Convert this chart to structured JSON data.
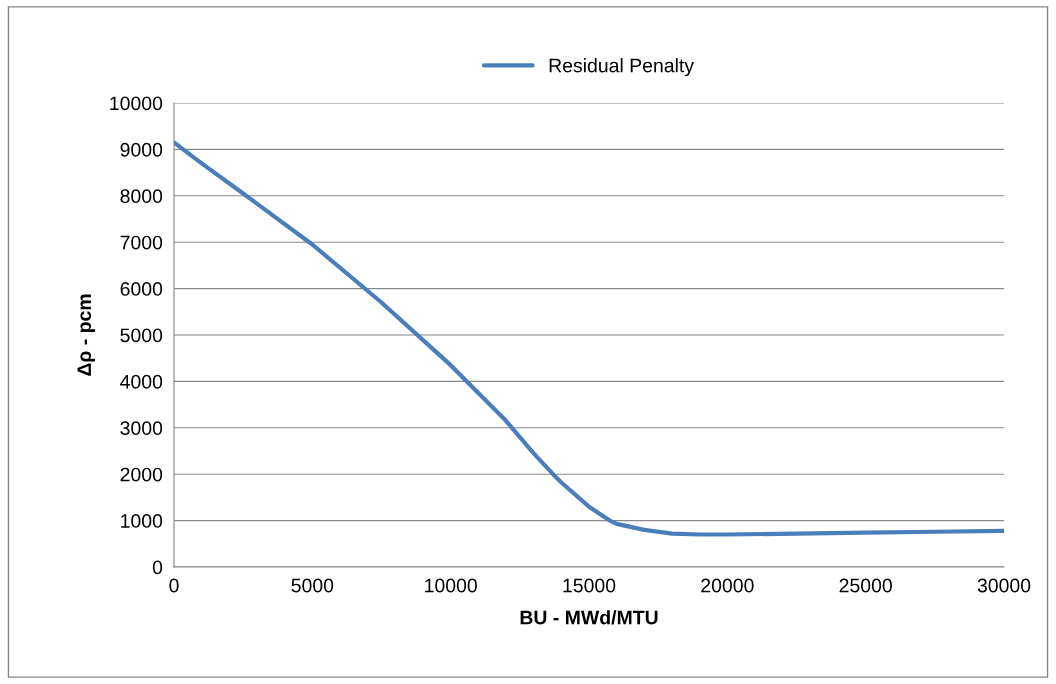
{
  "chart_data": {
    "type": "line",
    "xlabel": "BU - MWd/MTU",
    "ylabel": "Δρ - pcm",
    "x": [
      0,
      1000,
      2500,
      5000,
      7500,
      10000,
      11000,
      12000,
      12500,
      13000,
      13700,
      14000,
      15000,
      15750,
      16000,
      17000,
      18000,
      19000,
      20000,
      22500,
      25000,
      27500,
      30000
    ],
    "series": [
      {
        "name": "Residual Penalty",
        "color": "#4a7ebb",
        "values": [
          9150,
          8700,
          8050,
          6950,
          5700,
          4350,
          3750,
          3150,
          2800,
          2450,
          2000,
          1820,
          1300,
          1000,
          930,
          800,
          720,
          700,
          700,
          720,
          740,
          760,
          780
        ]
      }
    ],
    "xlim": [
      0,
      30000
    ],
    "xticks": [
      0,
      5000,
      10000,
      15000,
      20000,
      25000,
      30000
    ],
    "ylim": [
      0,
      10000
    ],
    "yticks": [
      0,
      1000,
      2000,
      3000,
      4000,
      5000,
      6000,
      7000,
      8000,
      9000,
      10000
    ],
    "grid": "y",
    "legend": "top",
    "marker": "none",
    "line_style": "solid"
  }
}
